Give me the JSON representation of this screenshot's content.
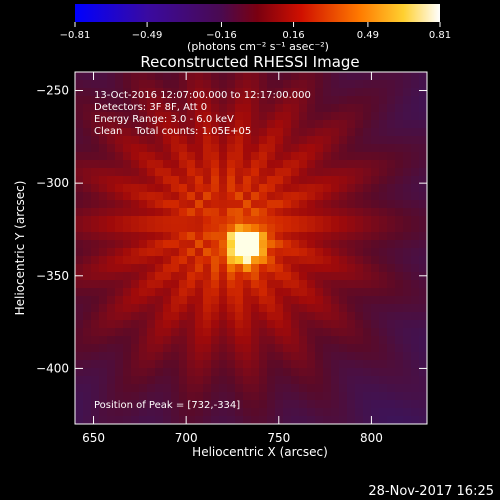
{
  "chart_data": {
    "type": "heatmap",
    "title": "Reconstructed RHESSI Image",
    "xlabel": "Heliocentric X (arcsec)",
    "ylabel": "Heliocentric Y (arcsec)",
    "xlim": [
      640,
      830
    ],
    "ylim": [
      -430,
      -240
    ],
    "x_ticks": [
      650,
      700,
      750,
      800
    ],
    "y_ticks": [
      -250,
      -300,
      -350,
      -400
    ],
    "x_tick_labels": [
      "650",
      "700",
      "750",
      "800"
    ],
    "y_tick_labels": [
      "−250",
      "−300",
      "−350",
      "−400"
    ],
    "colorbar": {
      "ticks": [
        -0.81,
        -0.49,
        -0.16,
        0.16,
        0.49,
        0.81
      ],
      "tick_labels": [
        "−0.81",
        "−0.49",
        "−0.16",
        "0.16",
        "0.49",
        "0.81"
      ],
      "unit_label": "(photons cm⁻² s⁻¹ asec⁻²)",
      "range": [
        -0.81,
        0.81
      ]
    },
    "info_lines": [
      "13-Oct-2016 12:07:00.000 to 12:17:00.000",
      "Detectors: 3F 8F, Att 0",
      "Energy Range: 3.0 - 6.0 keV",
      "Clean    Total counts: 1.05E+05"
    ],
    "peak_label": "Position of Peak = [732,-334]",
    "peak": {
      "x": 732,
      "y": -334
    },
    "source_background": {
      "x": 720,
      "y": -322,
      "radius_arcsec": 85
    }
  },
  "footer_date": "28-Nov-2017 16:25"
}
